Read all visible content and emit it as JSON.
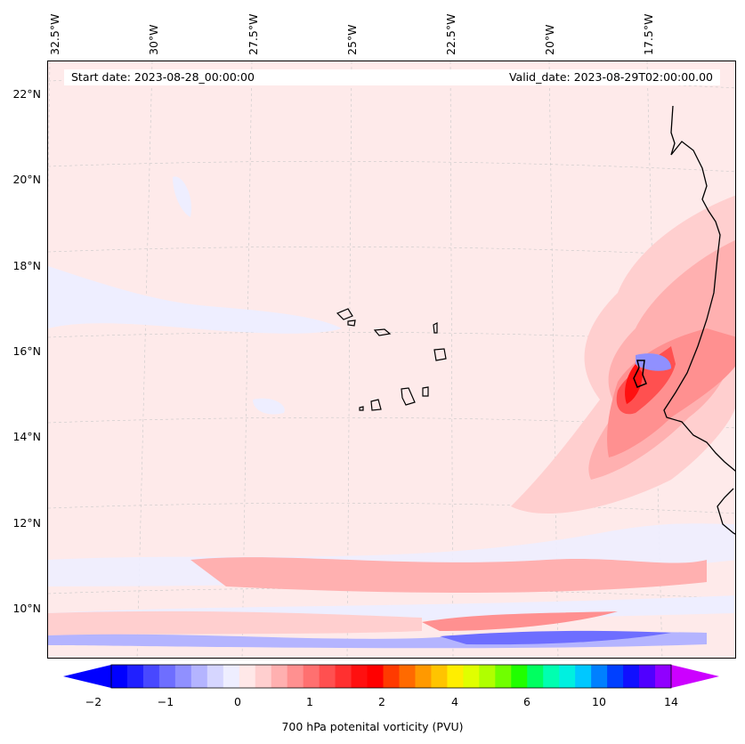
{
  "header": {
    "start_date": "Start date: 2023-08-28_00:00:00",
    "valid_date": "Valid_date: 2023-08-29T02:00:00.00"
  },
  "map": {
    "longitude_labels": [
      "32.5°W",
      "30°W",
      "27.5°W",
      "25°W",
      "22.5°W",
      "20°W",
      "17.5°W"
    ],
    "latitude_labels": [
      "22°N",
      "20°N",
      "18°N",
      "16°N",
      "14°N",
      "12°N",
      "10°N"
    ],
    "variable": "700 hPa potential vorticity"
  },
  "colorbar": {
    "title": "700 hPa potenital vorticity (PVU)",
    "tick_labels": [
      "−2",
      "−1",
      "0",
      "1",
      "2",
      "4",
      "6",
      "10",
      "14"
    ],
    "colors": [
      "#0000ff",
      "#2020ff",
      "#4848ff",
      "#6e6eff",
      "#9090ff",
      "#b4b4ff",
      "#d6d6ff",
      "#eeeeff",
      "#ffe8e8",
      "#ffcfcf",
      "#ffb0b0",
      "#ff9090",
      "#ff7070",
      "#ff5050",
      "#ff3030",
      "#ff1010",
      "#ff0000",
      "#ff3a00",
      "#ff6a00",
      "#ff9900",
      "#ffc400",
      "#ffee00",
      "#e0ff00",
      "#b0ff00",
      "#70ff00",
      "#20ff00",
      "#00ff60",
      "#00ffb0",
      "#00f0e0",
      "#00c8ff",
      "#0080ff",
      "#0040ff",
      "#1010ff",
      "#5000ff",
      "#9000ff"
    ],
    "extend_low_color": "#0000ff",
    "extend_high_color": "#cc00ff"
  }
}
